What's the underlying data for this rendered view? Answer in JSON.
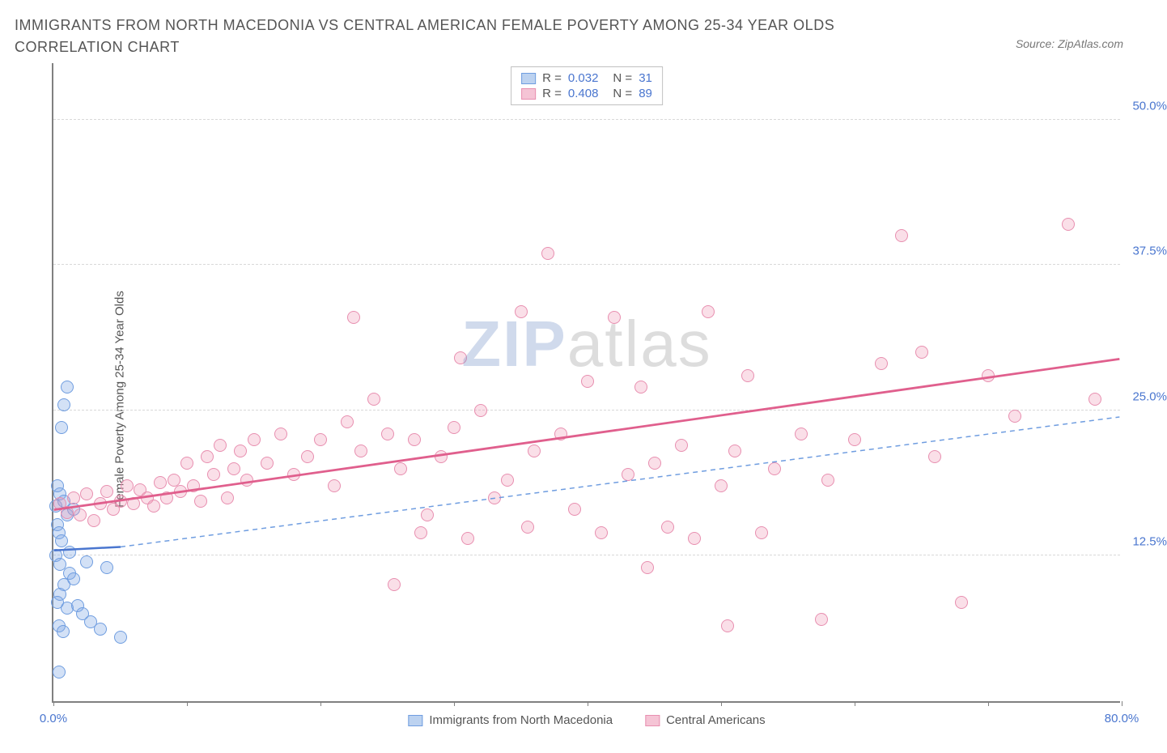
{
  "title": "IMMIGRANTS FROM NORTH MACEDONIA VS CENTRAL AMERICAN FEMALE POVERTY AMONG 25-34 YEAR OLDS CORRELATION CHART",
  "source_label": "Source: ZipAtlas.com",
  "ylabel": "Female Poverty Among 25-34 Year Olds",
  "watermark": {
    "part1": "ZIP",
    "part2": "atlas"
  },
  "chart": {
    "type": "scatter",
    "background_color": "#ffffff",
    "grid_color": "#d8d8d8",
    "axis_color": "#808080",
    "xlim": [
      0,
      80
    ],
    "ylim": [
      0,
      55
    ],
    "x_ticks": [
      0,
      10,
      20,
      30,
      40,
      50,
      60,
      70,
      80
    ],
    "x_tick_labels": {
      "0": "0.0%",
      "80": "80.0%"
    },
    "y_gridlines": [
      12.5,
      25.0,
      37.5,
      50.0
    ],
    "y_tick_labels": [
      "12.5%",
      "25.0%",
      "37.5%",
      "50.0%"
    ],
    "marker_size": 16,
    "series": [
      {
        "name": "Immigrants from North Macedonia",
        "color_fill": "rgba(130,170,230,0.35)",
        "color_stroke": "#6f9de0",
        "swatch_fill": "#bcd2f0",
        "swatch_stroke": "#6f9de0",
        "r": "0.032",
        "n": "31",
        "trend": {
          "x1": 0,
          "y1": 13.0,
          "x2": 5,
          "y2": 13.3,
          "color": "#4a76cf",
          "width": 2.5,
          "dash": "none"
        },
        "extrap": {
          "x1": 5,
          "y1": 13.3,
          "x2": 80,
          "y2": 24.5,
          "color": "#6f9de0",
          "width": 1.5,
          "dash": "6,5"
        },
        "points": [
          [
            0.2,
            16.8
          ],
          [
            0.3,
            15.2
          ],
          [
            0.5,
            17.8
          ],
          [
            0.3,
            18.5
          ],
          [
            0.8,
            17.2
          ],
          [
            1.0,
            16.0
          ],
          [
            0.4,
            14.5
          ],
          [
            0.6,
            13.8
          ],
          [
            0.2,
            12.5
          ],
          [
            0.5,
            11.8
          ],
          [
            1.2,
            11.0
          ],
          [
            1.5,
            10.5
          ],
          [
            0.8,
            10.0
          ],
          [
            0.5,
            9.2
          ],
          [
            0.3,
            8.5
          ],
          [
            1.0,
            8.0
          ],
          [
            1.8,
            8.2
          ],
          [
            2.2,
            7.5
          ],
          [
            2.8,
            6.8
          ],
          [
            3.5,
            6.2
          ],
          [
            5.0,
            5.5
          ],
          [
            0.4,
            6.5
          ],
          [
            0.7,
            6.0
          ],
          [
            1.2,
            12.8
          ],
          [
            1.5,
            16.5
          ],
          [
            0.6,
            23.5
          ],
          [
            0.8,
            25.5
          ],
          [
            1.0,
            27.0
          ],
          [
            0.4,
            2.5
          ],
          [
            2.5,
            12.0
          ],
          [
            4.0,
            11.5
          ]
        ]
      },
      {
        "name": "Central Americans",
        "color_fill": "rgba(240,150,180,0.30)",
        "color_stroke": "#e88fb0",
        "swatch_fill": "#f5c4d5",
        "swatch_stroke": "#e88fb0",
        "r": "0.408",
        "n": "89",
        "trend": {
          "x1": 0,
          "y1": 16.5,
          "x2": 80,
          "y2": 29.5,
          "color": "#e05f8d",
          "width": 2.8,
          "dash": "none"
        },
        "extrap": null,
        "points": [
          [
            0.5,
            17.0
          ],
          [
            1.0,
            16.2
          ],
          [
            1.5,
            17.5
          ],
          [
            2.0,
            16.0
          ],
          [
            2.5,
            17.8
          ],
          [
            3.0,
            15.5
          ],
          [
            3.5,
            17.0
          ],
          [
            4.0,
            18.0
          ],
          [
            4.5,
            16.5
          ],
          [
            5.0,
            17.2
          ],
          [
            5.5,
            18.5
          ],
          [
            6.0,
            17.0
          ],
          [
            6.5,
            18.2
          ],
          [
            7.0,
            17.5
          ],
          [
            7.5,
            16.8
          ],
          [
            8.0,
            18.8
          ],
          [
            8.5,
            17.5
          ],
          [
            9.0,
            19.0
          ],
          [
            9.5,
            18.0
          ],
          [
            10.0,
            20.5
          ],
          [
            10.5,
            18.5
          ],
          [
            11.0,
            17.2
          ],
          [
            11.5,
            21.0
          ],
          [
            12.0,
            19.5
          ],
          [
            12.5,
            22.0
          ],
          [
            13.0,
            17.5
          ],
          [
            13.5,
            20.0
          ],
          [
            14.0,
            21.5
          ],
          [
            14.5,
            19.0
          ],
          [
            15.0,
            22.5
          ],
          [
            16.0,
            20.5
          ],
          [
            17.0,
            23.0
          ],
          [
            18.0,
            19.5
          ],
          [
            19.0,
            21.0
          ],
          [
            20.0,
            22.5
          ],
          [
            21.0,
            18.5
          ],
          [
            22.0,
            24.0
          ],
          [
            22.5,
            33.0
          ],
          [
            23.0,
            21.5
          ],
          [
            24.0,
            26.0
          ],
          [
            25.0,
            23.0
          ],
          [
            25.5,
            10.0
          ],
          [
            26.0,
            20.0
          ],
          [
            27.0,
            22.5
          ],
          [
            27.5,
            14.5
          ],
          [
            28.0,
            16.0
          ],
          [
            29.0,
            21.0
          ],
          [
            30.0,
            23.5
          ],
          [
            30.5,
            29.5
          ],
          [
            31.0,
            14.0
          ],
          [
            32.0,
            25.0
          ],
          [
            33.0,
            17.5
          ],
          [
            34.0,
            19.0
          ],
          [
            35.0,
            33.5
          ],
          [
            35.5,
            15.0
          ],
          [
            36.0,
            21.5
          ],
          [
            37.0,
            38.5
          ],
          [
            38.0,
            23.0
          ],
          [
            39.0,
            16.5
          ],
          [
            40.0,
            27.5
          ],
          [
            41.0,
            14.5
          ],
          [
            42.0,
            33.0
          ],
          [
            43.0,
            19.5
          ],
          [
            44.0,
            27.0
          ],
          [
            44.5,
            11.5
          ],
          [
            45.0,
            20.5
          ],
          [
            46.0,
            15.0
          ],
          [
            47.0,
            22.0
          ],
          [
            48.0,
            14.0
          ],
          [
            49.0,
            33.5
          ],
          [
            50.0,
            18.5
          ],
          [
            50.5,
            6.5
          ],
          [
            51.0,
            21.5
          ],
          [
            52.0,
            28.0
          ],
          [
            53.0,
            14.5
          ],
          [
            54.0,
            20.0
          ],
          [
            56.0,
            23.0
          ],
          [
            57.5,
            7.0
          ],
          [
            58.0,
            19.0
          ],
          [
            60.0,
            22.5
          ],
          [
            62.0,
            29.0
          ],
          [
            63.5,
            40.0
          ],
          [
            65.0,
            30.0
          ],
          [
            66.0,
            21.0
          ],
          [
            68.0,
            8.5
          ],
          [
            70.0,
            28.0
          ],
          [
            72.0,
            24.5
          ],
          [
            76.0,
            41.0
          ],
          [
            78.0,
            26.0
          ]
        ]
      }
    ]
  },
  "bottom_legend": [
    {
      "label": "Immigrants from North Macedonia",
      "swatch_fill": "#bcd2f0",
      "swatch_stroke": "#6f9de0"
    },
    {
      "label": "Central Americans",
      "swatch_fill": "#f5c4d5",
      "swatch_stroke": "#e88fb0"
    }
  ]
}
